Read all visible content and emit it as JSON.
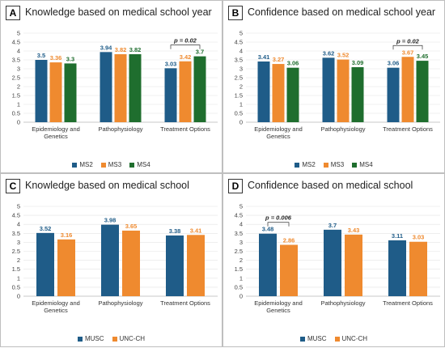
{
  "colors": {
    "MS2": "#1f5c88",
    "MS3": "#ef8a2f",
    "MS4": "#1f6e2e",
    "MUSC": "#1f5c88",
    "UNC-CH": "#ef8a2f"
  },
  "chart_data": [
    {
      "id": "A",
      "letter": "A",
      "type": "bar",
      "title": "Knowledge based on medical school year",
      "categories": [
        "Epidemiology and Genetics",
        "Pathophysiology",
        "Treatment Options"
      ],
      "category_lines": [
        [
          "Epidemiology and",
          "Genetics"
        ],
        [
          "Pathophysiology"
        ],
        [
          "Treatment Options"
        ]
      ],
      "series": [
        {
          "name": "MS2",
          "values": [
            3.5,
            3.94,
            3.03
          ],
          "labels": [
            "3.5",
            "3.94",
            "3.03"
          ]
        },
        {
          "name": "MS3",
          "values": [
            3.36,
            3.82,
            3.42
          ],
          "labels": [
            "3.36",
            "3.82",
            "3.42"
          ]
        },
        {
          "name": "MS4",
          "values": [
            3.3,
            3.82,
            3.7
          ],
          "labels": [
            "3.3",
            "3.82",
            "3.7"
          ]
        }
      ],
      "ylim": [
        0,
        5
      ],
      "yticks": [
        "0",
        "0.5",
        "1",
        "1.5",
        "2",
        "2.5",
        "3",
        "3.5",
        "4",
        "4.5",
        "5"
      ],
      "annotation": {
        "text": "p = 0.02",
        "category_index": 2,
        "from_series": 0,
        "to_series": 2
      },
      "legend": "bottom"
    },
    {
      "id": "B",
      "letter": "B",
      "type": "bar",
      "title": "Confidence based on medical school year",
      "categories": [
        "Epidemiology and Genetics",
        "Pathophysiology",
        "Treatment Options"
      ],
      "category_lines": [
        [
          "Epidemiology and",
          "Genetics"
        ],
        [
          "Pathophysiology"
        ],
        [
          "Treatment Options"
        ]
      ],
      "series": [
        {
          "name": "MS2",
          "values": [
            3.41,
            3.62,
            3.06
          ],
          "labels": [
            "3.41",
            "3.62",
            "3.06"
          ]
        },
        {
          "name": "MS3",
          "values": [
            3.27,
            3.52,
            3.67
          ],
          "labels": [
            "3.27",
            "3.52",
            "3.67"
          ]
        },
        {
          "name": "MS4",
          "values": [
            3.06,
            3.09,
            3.45
          ],
          "labels": [
            "3.06",
            "3.09",
            "3.45"
          ]
        }
      ],
      "ylim": [
        0,
        5
      ],
      "yticks": [
        "0",
        "0.5",
        "1",
        "1.5",
        "2",
        "2.5",
        "3",
        "3.5",
        "4",
        "4.5",
        "5"
      ],
      "annotation": {
        "text": "p = 0.02",
        "category_index": 2,
        "from_series": 0,
        "to_series": 2
      },
      "legend": "bottom"
    },
    {
      "id": "C",
      "letter": "C",
      "type": "bar",
      "title": "Knowledge based on medical school",
      "categories": [
        "Epidemiology and Genetics",
        "Pathophysiology",
        "Treatment Options"
      ],
      "category_lines": [
        [
          "Epidemiology and",
          "Genetics"
        ],
        [
          "Pathophysiology"
        ],
        [
          "Treatment Options"
        ]
      ],
      "series": [
        {
          "name": "MUSC",
          "values": [
            3.52,
            3.98,
            3.38
          ],
          "labels": [
            "3.52",
            "3.98",
            "3.38"
          ]
        },
        {
          "name": "UNC-CH",
          "values": [
            3.16,
            3.65,
            3.41
          ],
          "labels": [
            "3.16",
            "3.65",
            "3.41"
          ]
        }
      ],
      "ylim": [
        0,
        5
      ],
      "yticks": [
        "0",
        "0.5",
        "1",
        "1.5",
        "2",
        "2.5",
        "3",
        "3.5",
        "4",
        "4.5",
        "5"
      ],
      "annotation": null,
      "legend": "bottom"
    },
    {
      "id": "D",
      "letter": "D",
      "type": "bar",
      "title": "Confidence based on medical school",
      "categories": [
        "Epidemiology and Genetics",
        "Pathophysiology",
        "Treatment Options"
      ],
      "category_lines": [
        [
          "Epidemiology and",
          "Genetics"
        ],
        [
          "Pathophysiology"
        ],
        [
          "Treatment Options"
        ]
      ],
      "series": [
        {
          "name": "MUSC",
          "values": [
            3.48,
            3.7,
            3.11
          ],
          "labels": [
            "3.48",
            "3.7",
            "3.11"
          ]
        },
        {
          "name": "UNC-CH",
          "values": [
            2.86,
            3.43,
            3.03
          ],
          "labels": [
            "2.86",
            "3.43",
            "3.03"
          ]
        }
      ],
      "ylim": [
        0,
        5
      ],
      "yticks": [
        "0",
        "0.5",
        "1",
        "1.5",
        "2",
        "2.5",
        "3",
        "3.5",
        "4",
        "4.5",
        "5"
      ],
      "annotation": {
        "text": "p = 0.006",
        "category_index": 0,
        "from_series": 0,
        "to_series": 1
      },
      "legend": "bottom"
    }
  ]
}
